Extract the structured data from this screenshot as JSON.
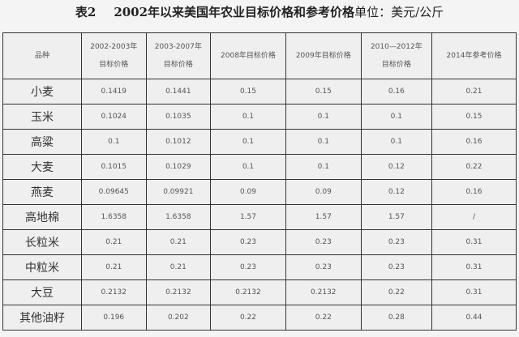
{
  "title": {
    "label": "表2",
    "text": "2002年以来美国年农业目标价格和参考价格",
    "unit": "单位：美元/公斤"
  },
  "table": {
    "headers": [
      [
        "品种"
      ],
      [
        "2002-2003年",
        "目标价格"
      ],
      [
        "2003-2007年",
        "目标价格"
      ],
      [
        "2008年目标价格"
      ],
      [
        "2009年目标价格"
      ],
      [
        "2010—2012年",
        "目标价格"
      ],
      [
        "2014年参考价格"
      ]
    ],
    "rows": [
      [
        "小麦",
        "0.1419",
        "0.1441",
        "0.15",
        "0.15",
        "0.16",
        "0.21"
      ],
      [
        "玉米",
        "0.1024",
        "0.1035",
        "0.1",
        "0.1",
        "0.1",
        "0.15"
      ],
      [
        "高粱",
        "0.1",
        "0.1012",
        "0.1",
        "0.1",
        "0.1",
        "0.16"
      ],
      [
        "大麦",
        "0.1015",
        "0.1029",
        "0.1",
        "0.1",
        "0.12",
        "0.22"
      ],
      [
        "燕麦",
        "0.09645",
        "0.09921",
        "0.09",
        "0.09",
        "0.12",
        "0.16"
      ],
      [
        "高地棉",
        "1.6358",
        "1.6358",
        "1.57",
        "1.57",
        "1.57",
        "/"
      ],
      [
        "长粒米",
        "0.21",
        "0.21",
        "0.23",
        "0.23",
        "0.23",
        "0.31"
      ],
      [
        "中粒米",
        "0.21",
        "0.21",
        "0.23",
        "0.23",
        "0.23",
        "0.31"
      ],
      [
        "大豆",
        "0.2132",
        "0.2132",
        "0.2132",
        "0.2132",
        "0.22",
        "0.31"
      ],
      [
        "其他油籽",
        "0.196",
        "0.202",
        "0.22",
        "0.22",
        "0.28",
        "0.44"
      ]
    ]
  }
}
